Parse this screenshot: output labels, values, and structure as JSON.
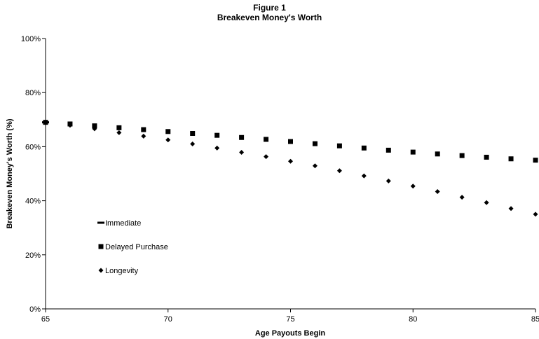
{
  "chart_data": {
    "type": "scatter",
    "title": "Figure 1",
    "subtitle": "Breakeven Money's Worth",
    "xlabel": "Age Payouts Begin",
    "ylabel": "Breakeven Money's Worth (%)",
    "xlim": [
      65,
      85
    ],
    "ylim": [
      0,
      100
    ],
    "xticks": [
      65,
      70,
      75,
      80,
      85
    ],
    "yticks": [
      0,
      20,
      40,
      60,
      80,
      100
    ],
    "ytick_labels": [
      "0%",
      "20%",
      "40%",
      "60%",
      "80%",
      "100%"
    ],
    "grid": false,
    "legend_position": "left-middle",
    "series": [
      {
        "name": "Immediate",
        "marker": "dash",
        "x": [
          65
        ],
        "y": [
          69.0
        ]
      },
      {
        "name": "Delayed Purchase",
        "marker": "square",
        "x": [
          65,
          66,
          67,
          68,
          69,
          70,
          71,
          72,
          73,
          74,
          75,
          76,
          77,
          78,
          79,
          80,
          81,
          82,
          83,
          84,
          85
        ],
        "y": [
          69.0,
          68.4,
          67.7,
          67.0,
          66.3,
          65.6,
          64.9,
          64.2,
          63.4,
          62.7,
          61.9,
          61.1,
          60.3,
          59.5,
          58.7,
          58.0,
          57.3,
          56.7,
          56.1,
          55.5,
          55.0
        ]
      },
      {
        "name": "Longevity",
        "marker": "diamond",
        "x": [
          65,
          66,
          67,
          68,
          69,
          70,
          71,
          72,
          73,
          74,
          75,
          76,
          77,
          78,
          79,
          80,
          81,
          82,
          83,
          84,
          85
        ],
        "y": [
          69.0,
          67.9,
          66.6,
          65.2,
          63.9,
          62.5,
          61.0,
          59.5,
          57.9,
          56.3,
          54.6,
          52.9,
          51.1,
          49.2,
          47.3,
          45.4,
          43.4,
          41.3,
          39.3,
          37.1,
          35.0
        ]
      }
    ]
  }
}
